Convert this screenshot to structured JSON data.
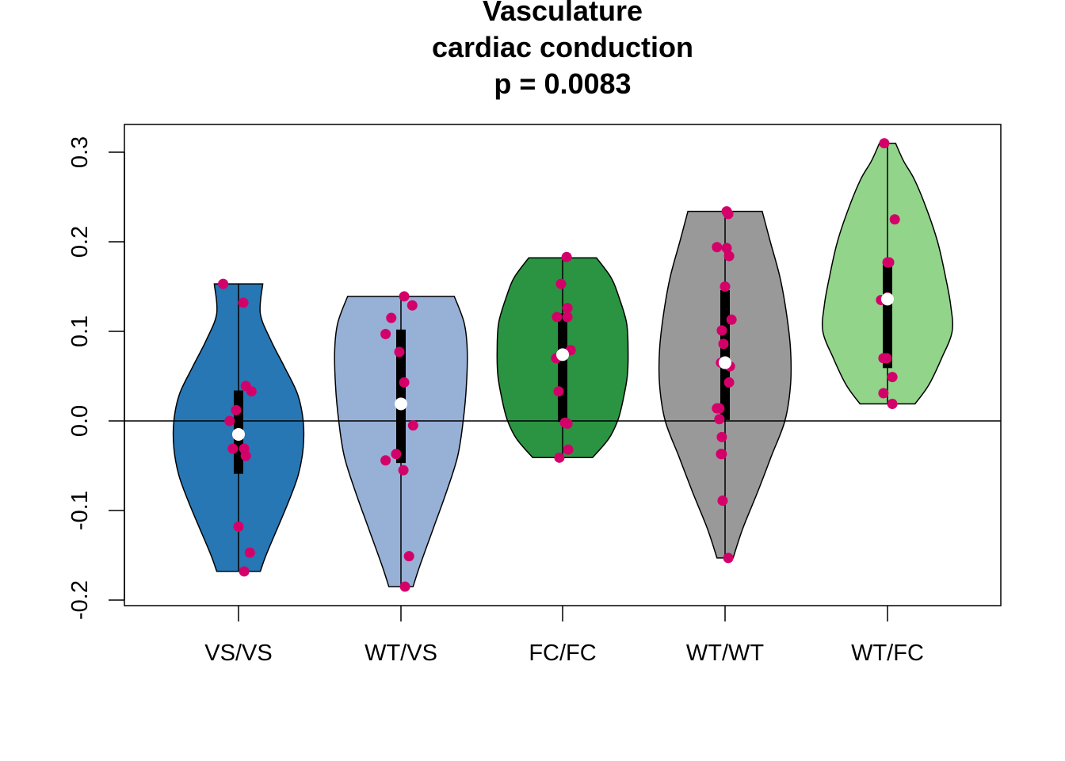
{
  "chart_data": {
    "type": "violin",
    "title_lines": [
      "Vasculature",
      "cardiac conduction",
      "p = 0.0083"
    ],
    "xlabel": "",
    "ylabel": "",
    "ylim": [
      -0.205,
      0.33
    ],
    "y_ticks": [
      -0.2,
      -0.1,
      0.0,
      0.1,
      0.2,
      0.3
    ],
    "y_tick_labels": [
      "-0.2",
      "-0.1",
      "0.0",
      "0.1",
      "0.2",
      "0.3"
    ],
    "reference_line_y": 0.0,
    "grid": false,
    "legend": "none",
    "point_color": "#d4006a",
    "median_color": "#ffffff",
    "groups": [
      {
        "label": "VS/VS",
        "fill": "#2777b4",
        "min": -0.168,
        "max": 0.153,
        "q1": -0.059,
        "median": -0.015,
        "q3": 0.034,
        "profile": [
          [
            -0.168,
            0.27
          ],
          [
            -0.15,
            0.34
          ],
          [
            -0.12,
            0.48
          ],
          [
            -0.09,
            0.62
          ],
          [
            -0.06,
            0.74
          ],
          [
            -0.03,
            0.8
          ],
          [
            0.0,
            0.8
          ],
          [
            0.03,
            0.73
          ],
          [
            0.06,
            0.57
          ],
          [
            0.09,
            0.4
          ],
          [
            0.12,
            0.27
          ],
          [
            0.153,
            0.3
          ]
        ],
        "points": [
          {
            "y": 0.153,
            "dx": -0.19
          },
          {
            "y": 0.132,
            "dx": 0.06
          },
          {
            "y": 0.039,
            "dx": 0.09
          },
          {
            "y": 0.033,
            "dx": 0.16
          },
          {
            "y": 0.012,
            "dx": -0.03
          },
          {
            "y": 0.0,
            "dx": -0.11
          },
          {
            "y": -0.031,
            "dx": -0.07
          },
          {
            "y": -0.031,
            "dx": 0.07
          },
          {
            "y": -0.039,
            "dx": 0.09
          },
          {
            "y": -0.118,
            "dx": 0.0
          },
          {
            "y": -0.147,
            "dx": 0.14
          },
          {
            "y": -0.168,
            "dx": 0.07
          }
        ]
      },
      {
        "label": "WT/VS",
        "fill": "#97b0d6",
        "min": -0.185,
        "max": 0.139,
        "q1": -0.047,
        "median": 0.019,
        "q3": 0.102,
        "profile": [
          [
            -0.185,
            0.15
          ],
          [
            -0.16,
            0.24
          ],
          [
            -0.12,
            0.4
          ],
          [
            -0.08,
            0.56
          ],
          [
            -0.04,
            0.7
          ],
          [
            0.0,
            0.77
          ],
          [
            0.04,
            0.81
          ],
          [
            0.08,
            0.82
          ],
          [
            0.11,
            0.78
          ],
          [
            0.139,
            0.66
          ]
        ],
        "points": [
          {
            "y": 0.139,
            "dx": 0.04
          },
          {
            "y": 0.129,
            "dx": 0.14
          },
          {
            "y": 0.115,
            "dx": -0.12
          },
          {
            "y": 0.097,
            "dx": -0.19
          },
          {
            "y": 0.077,
            "dx": -0.02
          },
          {
            "y": 0.043,
            "dx": 0.04
          },
          {
            "y": -0.005,
            "dx": 0.15
          },
          {
            "y": -0.037,
            "dx": -0.06
          },
          {
            "y": -0.044,
            "dx": -0.19
          },
          {
            "y": -0.055,
            "dx": 0.03
          },
          {
            "y": -0.151,
            "dx": 0.1
          },
          {
            "y": -0.185,
            "dx": 0.05
          }
        ]
      },
      {
        "label": "FC/FC",
        "fill": "#2b9442",
        "min": -0.041,
        "max": 0.182,
        "q1": -0.001,
        "median": 0.074,
        "q3": 0.12,
        "profile": [
          [
            -0.041,
            0.37
          ],
          [
            -0.02,
            0.57
          ],
          [
            0.0,
            0.68
          ],
          [
            0.02,
            0.74
          ],
          [
            0.05,
            0.8
          ],
          [
            0.08,
            0.81
          ],
          [
            0.11,
            0.79
          ],
          [
            0.14,
            0.69
          ],
          [
            0.16,
            0.6
          ],
          [
            0.182,
            0.42
          ]
        ],
        "points": [
          {
            "y": 0.183,
            "dx": 0.05
          },
          {
            "y": 0.153,
            "dx": -0.02
          },
          {
            "y": 0.126,
            "dx": 0.06
          },
          {
            "y": 0.116,
            "dx": -0.07
          },
          {
            "y": 0.116,
            "dx": 0.06
          },
          {
            "y": 0.079,
            "dx": 0.1
          },
          {
            "y": 0.07,
            "dx": -0.08
          },
          {
            "y": 0.033,
            "dx": -0.05
          },
          {
            "y": -0.002,
            "dx": 0.03
          },
          {
            "y": -0.003,
            "dx": 0.06
          },
          {
            "y": -0.032,
            "dx": 0.07
          },
          {
            "y": -0.041,
            "dx": -0.04
          }
        ]
      },
      {
        "label": "WT/WT",
        "fill": "#999999",
        "min": -0.153,
        "max": 0.234,
        "q1": 0.001,
        "median": 0.065,
        "q3": 0.146,
        "profile": [
          [
            -0.153,
            0.1
          ],
          [
            -0.12,
            0.22
          ],
          [
            -0.08,
            0.4
          ],
          [
            -0.04,
            0.57
          ],
          [
            0.0,
            0.74
          ],
          [
            0.04,
            0.81
          ],
          [
            0.08,
            0.81
          ],
          [
            0.12,
            0.76
          ],
          [
            0.16,
            0.68
          ],
          [
            0.2,
            0.56
          ],
          [
            0.234,
            0.46
          ]
        ],
        "points": [
          {
            "y": 0.234,
            "dx": 0.02
          },
          {
            "y": 0.231,
            "dx": 0.04
          },
          {
            "y": 0.194,
            "dx": -0.1
          },
          {
            "y": 0.193,
            "dx": 0.02
          },
          {
            "y": 0.184,
            "dx": 0.05
          },
          {
            "y": 0.15,
            "dx": 0.0
          },
          {
            "y": 0.113,
            "dx": 0.08
          },
          {
            "y": 0.101,
            "dx": -0.04
          },
          {
            "y": 0.086,
            "dx": -0.02
          },
          {
            "y": 0.065,
            "dx": -0.05
          },
          {
            "y": 0.061,
            "dx": 0.06
          },
          {
            "y": 0.043,
            "dx": 0.05
          },
          {
            "y": 0.014,
            "dx": -0.1
          },
          {
            "y": 0.014,
            "dx": -0.07
          },
          {
            "y": 0.002,
            "dx": -0.07
          },
          {
            "y": -0.018,
            "dx": -0.04
          },
          {
            "y": -0.037,
            "dx": -0.05
          },
          {
            "y": -0.037,
            "dx": -0.04
          },
          {
            "y": -0.089,
            "dx": -0.03
          },
          {
            "y": -0.153,
            "dx": 0.04
          }
        ]
      },
      {
        "label": "WT/FC",
        "fill": "#92d48a",
        "min": 0.019,
        "max": 0.31,
        "q1": 0.059,
        "median": 0.136,
        "q3": 0.178,
        "profile": [
          [
            0.019,
            0.34
          ],
          [
            0.04,
            0.51
          ],
          [
            0.07,
            0.67
          ],
          [
            0.1,
            0.8
          ],
          [
            0.13,
            0.78
          ],
          [
            0.16,
            0.72
          ],
          [
            0.2,
            0.62
          ],
          [
            0.24,
            0.47
          ],
          [
            0.27,
            0.33
          ],
          [
            0.29,
            0.2
          ],
          [
            0.31,
            0.1
          ]
        ],
        "points": [
          {
            "y": 0.31,
            "dx": -0.04
          },
          {
            "y": 0.225,
            "dx": 0.09
          },
          {
            "y": 0.177,
            "dx": 0.0
          },
          {
            "y": 0.177,
            "dx": 0.02
          },
          {
            "y": 0.138,
            "dx": 0.0
          },
          {
            "y": 0.135,
            "dx": -0.08
          },
          {
            "y": 0.07,
            "dx": -0.05
          },
          {
            "y": 0.07,
            "dx": -0.01
          },
          {
            "y": 0.049,
            "dx": 0.06
          },
          {
            "y": 0.031,
            "dx": -0.05
          },
          {
            "y": 0.019,
            "dx": 0.06
          }
        ]
      }
    ]
  }
}
